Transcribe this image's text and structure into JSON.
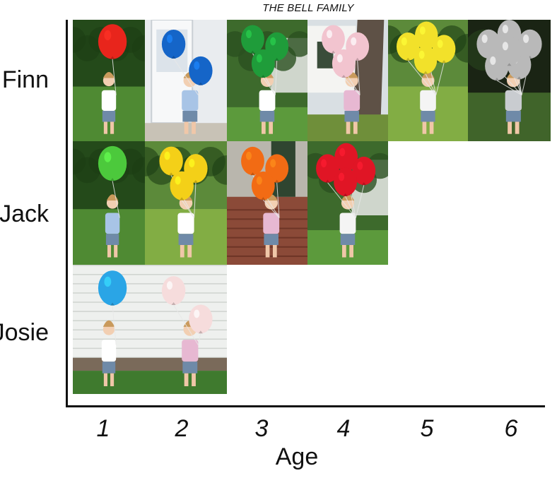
{
  "chart_data": {
    "type": "table",
    "title": "THE BELL FAMILY",
    "xlabel": "Age",
    "ylabel": "",
    "x_ticks": [
      "1",
      "2",
      "3",
      "4",
      "5",
      "6"
    ],
    "rows": [
      {
        "label": "Finn",
        "photos": [
          {
            "age": 1,
            "balloon_color": "#e8251c",
            "balloons": 1,
            "bg": "grass"
          },
          {
            "age": 2,
            "balloon_color": "#1565c8",
            "balloons": 2,
            "bg": "porch"
          },
          {
            "age": 3,
            "balloon_color": "#1f9c3a",
            "balloons": 3,
            "bg": "garden"
          },
          {
            "age": 4,
            "balloon_color": "#f2c4cf",
            "balloons": 3,
            "bg": "tree"
          },
          {
            "age": 5,
            "balloon_color": "#f2e12a",
            "balloons": 4,
            "bg": "lawn"
          },
          {
            "age": 6,
            "balloon_color": "#b9b9b9",
            "balloons": 6,
            "bg": "dark"
          }
        ]
      },
      {
        "label": "Jack",
        "photos": [
          {
            "age": 1,
            "balloon_color": "#4cc93c",
            "balloons": 1,
            "bg": "grass"
          },
          {
            "age": 2,
            "balloon_color": "#f4d018",
            "balloons": 3,
            "bg": "lawn"
          },
          {
            "age": 3,
            "balloon_color": "#f26b14",
            "balloons": 3,
            "bg": "brick"
          },
          {
            "age": 4,
            "balloon_color": "#e01525",
            "balloons": 4,
            "bg": "garden"
          }
        ]
      },
      {
        "label": "Josie",
        "photos": [
          {
            "age": 1,
            "balloon_color": "#2aa5e6",
            "balloons": 1,
            "bg": "siding"
          },
          {
            "age": 2,
            "balloon_color": "#f6dcdc",
            "balloons": 2,
            "bg": "siding"
          }
        ]
      }
    ]
  }
}
